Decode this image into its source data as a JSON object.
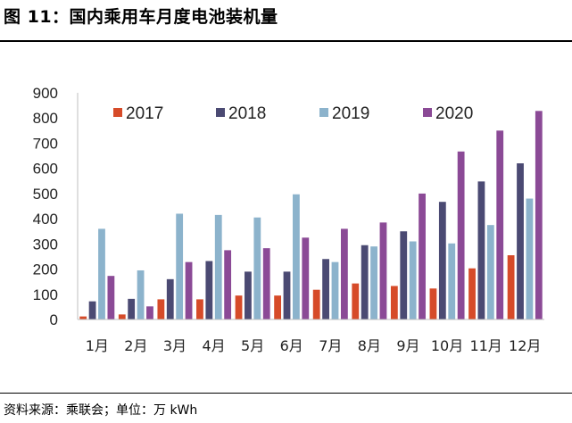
{
  "header": {
    "title": "图 11：国内乘用车月度电池装机量"
  },
  "footer": {
    "source": "资料来源：乘联会；单位：万 kWh"
  },
  "chart_data": {
    "type": "bar",
    "title": "",
    "xlabel": "",
    "ylabel": "",
    "ylim": [
      0,
      900
    ],
    "yticks": [
      "0",
      "100",
      "200",
      "300",
      "400",
      "500",
      "600",
      "700",
      "800",
      "900"
    ],
    "grid": false,
    "legend_position": "top",
    "categories": [
      "1月",
      "2月",
      "3月",
      "4月",
      "5月",
      "6月",
      "7月",
      "8月",
      "9月",
      "10月",
      "11月",
      "12月"
    ],
    "series": [
      {
        "name": "2017",
        "color": "#d64b29",
        "values": [
          12,
          20,
          80,
          80,
          95,
          95,
          118,
          143,
          133,
          123,
          203,
          255
        ]
      },
      {
        "name": "2018",
        "color": "#4b4a73",
        "values": [
          72,
          82,
          160,
          232,
          190,
          190,
          240,
          295,
          350,
          467,
          548,
          620
        ]
      },
      {
        "name": "2019",
        "color": "#8cb3cc",
        "values": [
          360,
          195,
          420,
          415,
          405,
          497,
          228,
          290,
          310,
          302,
          375,
          480
        ]
      },
      {
        "name": "2020",
        "color": "#8b4a96",
        "values": [
          173,
          52,
          228,
          275,
          283,
          325,
          360,
          385,
          500,
          667,
          750,
          828
        ]
      }
    ]
  }
}
